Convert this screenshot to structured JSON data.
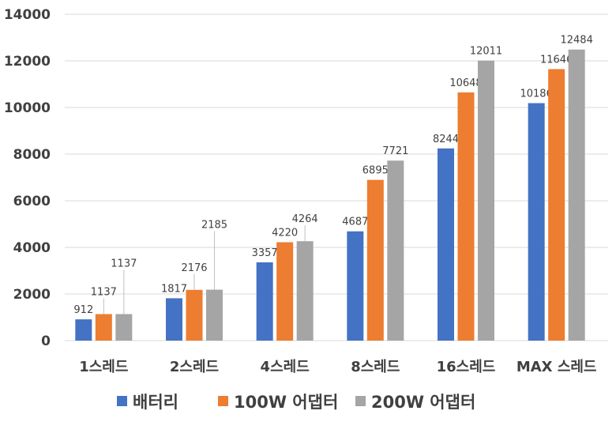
{
  "chart_data": {
    "type": "bar",
    "categories": [
      "1스레드",
      "2스레드",
      "4스레드",
      "8스레드",
      "16스레드",
      "MAX 스레드"
    ],
    "series": [
      {
        "name": "배터리",
        "color": "#4472C4",
        "values": [
          912,
          1817,
          3357,
          4687,
          8244,
          10186
        ]
      },
      {
        "name": "100W 어댑터",
        "color": "#ED7D31",
        "values": [
          1137,
          2176,
          4220,
          6895,
          10648,
          11646
        ]
      },
      {
        "name": "200W 어댑터",
        "color": "#A5A5A5",
        "values": [
          1137,
          2185,
          4264,
          7721,
          12011,
          12484
        ]
      }
    ],
    "yticks": [
      0,
      2000,
      4000,
      6000,
      8000,
      10000,
      12000,
      14000
    ],
    "ylim": [
      0,
      14000
    ],
    "grid": true,
    "data_labels": true,
    "legend": "bottom"
  }
}
